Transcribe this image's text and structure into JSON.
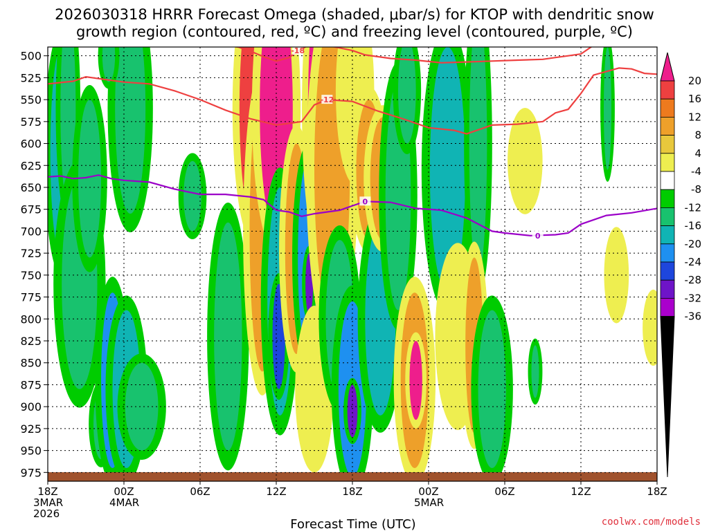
{
  "chart_data": {
    "type": "heatmap",
    "title_line1": "2026030318 HRRR Forecast Omega (shaded, μbar/s) for KTOP with dendritic snow",
    "title_line2": "growth region (contoured, red, ºC) and freezing level (contoured, purple, ºC)",
    "xlabel": "Forecast Time (UTC)",
    "credit": "coolwx.com/models",
    "x_range_hours": [
      0,
      48
    ],
    "y_range_mb": [
      490,
      985
    ],
    "y_ticks": [
      "500",
      "525",
      "550",
      "575",
      "600",
      "625",
      "650",
      "675",
      "700",
      "725",
      "750",
      "775",
      "800",
      "825",
      "850",
      "875",
      "900",
      "925",
      "950",
      "975"
    ],
    "x_ticks": [
      {
        "hour": 0,
        "lines": [
          "18Z",
          "3MAR",
          "2026"
        ]
      },
      {
        "hour": 6,
        "lines": [
          "00Z",
          "4MAR"
        ]
      },
      {
        "hour": 12,
        "lines": [
          "06Z"
        ]
      },
      {
        "hour": 18,
        "lines": [
          "12Z"
        ]
      },
      {
        "hour": 24,
        "lines": [
          "18Z"
        ]
      },
      {
        "hour": 30,
        "lines": [
          "00Z",
          "5MAR"
        ]
      },
      {
        "hour": 36,
        "lines": [
          "06Z"
        ]
      },
      {
        "hour": 42,
        "lines": [
          "12Z"
        ]
      },
      {
        "hour": 48,
        "lines": [
          "18Z"
        ]
      }
    ],
    "colorbar": {
      "labels": [
        "20",
        "16",
        "12",
        "8",
        "4",
        "-4",
        "-8",
        "-12",
        "-16",
        "-20",
        "-24",
        "-28",
        "-32",
        "-36"
      ],
      "colors": [
        "#ee1e8c",
        "#ee4040",
        "#ee7a1e",
        "#eea02a",
        "#e8c83c",
        "#eeee50",
        "#ffffff",
        "#00cc00",
        "#18c26e",
        "#10b4b4",
        "#1e90f0",
        "#1e46dc",
        "#6e14c8",
        "#aa00cc",
        "#a0a0a0",
        "#000000"
      ]
    },
    "series": [
      {
        "name": "-12C isotherm (dendritic growth region)",
        "color": "#ee4040",
        "label": "-12",
        "points": [
          [
            0,
            532
          ],
          [
            2,
            529
          ],
          [
            3,
            524
          ],
          [
            4,
            526
          ],
          [
            6,
            530
          ],
          [
            8,
            532
          ],
          [
            10,
            540
          ],
          [
            12,
            550
          ],
          [
            14,
            562
          ],
          [
            16,
            572
          ],
          [
            18,
            579
          ],
          [
            20,
            575
          ],
          [
            21,
            556
          ],
          [
            22,
            550
          ],
          [
            24,
            552
          ],
          [
            26,
            563
          ],
          [
            28,
            572
          ],
          [
            30,
            582
          ],
          [
            32,
            585
          ],
          [
            33,
            589
          ],
          [
            35,
            579
          ],
          [
            37,
            578
          ],
          [
            39,
            575
          ],
          [
            40,
            565
          ],
          [
            41,
            561
          ],
          [
            42,
            543
          ],
          [
            43,
            522
          ],
          [
            45,
            514
          ],
          [
            46,
            515
          ],
          [
            47,
            520
          ],
          [
            48,
            521
          ]
        ]
      },
      {
        "name": "-18C isotherm",
        "color": "#ee4040",
        "label": "-18",
        "points": [
          [
            14,
            488
          ],
          [
            15,
            490
          ],
          [
            16,
            495
          ],
          [
            17,
            501
          ],
          [
            18,
            506
          ],
          [
            19,
            502
          ],
          [
            20,
            492
          ],
          [
            21,
            485
          ],
          [
            22,
            488
          ],
          [
            23,
            491
          ],
          [
            24,
            494
          ],
          [
            25,
            499
          ],
          [
            27,
            503
          ],
          [
            29,
            505
          ],
          [
            31,
            508
          ],
          [
            33,
            507
          ],
          [
            35,
            506
          ],
          [
            37,
            505
          ],
          [
            39,
            504
          ],
          [
            40,
            502
          ],
          [
            41,
            500
          ],
          [
            42,
            498
          ],
          [
            43,
            488
          ]
        ]
      },
      {
        "name": "0C freezing level",
        "color": "#9b00c8",
        "label": "0",
        "points": [
          [
            0,
            638
          ],
          [
            1,
            637
          ],
          [
            2,
            640
          ],
          [
            3,
            639
          ],
          [
            4,
            636
          ],
          [
            5,
            640
          ],
          [
            6,
            642
          ],
          [
            8,
            644
          ],
          [
            10,
            652
          ],
          [
            12,
            658
          ],
          [
            14,
            658
          ],
          [
            16,
            661
          ],
          [
            17,
            664
          ],
          [
            18,
            676
          ],
          [
            19,
            678
          ],
          [
            20,
            683
          ],
          [
            21,
            680
          ],
          [
            23,
            676
          ],
          [
            25,
            666
          ],
          [
            27,
            667
          ],
          [
            29,
            674
          ],
          [
            31,
            676
          ],
          [
            33,
            685
          ],
          [
            35,
            700
          ],
          [
            36,
            702
          ],
          [
            38,
            705
          ],
          [
            40,
            704
          ],
          [
            41,
            702
          ],
          [
            42,
            692
          ],
          [
            44,
            682
          ],
          [
            46,
            679
          ],
          [
            48,
            674
          ]
        ]
      }
    ],
    "omega_cells": [
      {
        "h": 1.1,
        "p": 610,
        "dh": 0.9,
        "dp": 120,
        "v": -12
      },
      {
        "h": 1.6,
        "p": 560,
        "dh": 0.6,
        "dp": 110,
        "v": -8
      },
      {
        "h": 2.5,
        "p": 760,
        "dh": 1.4,
        "dp": 120,
        "v": -8
      },
      {
        "h": 3.3,
        "p": 640,
        "dh": 0.9,
        "dp": 90,
        "v": -8
      },
      {
        "h": 4.2,
        "p": 920,
        "dh": 0.6,
        "dp": 40,
        "v": -8
      },
      {
        "h": 5.1,
        "p": 870,
        "dh": 0.9,
        "dp": 100,
        "v": -16
      },
      {
        "h": 6.2,
        "p": 880,
        "dh": 1.1,
        "dp": 90,
        "v": -12
      },
      {
        "h": 6.5,
        "p": 560,
        "dh": 1.2,
        "dp": 120,
        "v": -8
      },
      {
        "h": 7.4,
        "p": 900,
        "dh": 1.3,
        "dp": 50,
        "v": -8
      },
      {
        "h": 4.8,
        "p": 500,
        "dh": 0.5,
        "dp": 30,
        "v": -8
      },
      {
        "h": 11.4,
        "p": 660,
        "dh": 0.7,
        "dp": 40,
        "v": -8
      },
      {
        "h": 14.2,
        "p": 820,
        "dh": 1.1,
        "dp": 130,
        "v": -8
      },
      {
        "h": 15.8,
        "p": 580,
        "dh": 0.7,
        "dp": 60,
        "v": 8
      },
      {
        "h": 16.2,
        "p": 560,
        "dh": 1.1,
        "dp": 130,
        "v": 16
      },
      {
        "h": 16.9,
        "p": 700,
        "dh": 1.0,
        "dp": 160,
        "v": 8
      },
      {
        "h": 18.0,
        "p": 560,
        "dh": 1.3,
        "dp": 140,
        "v": 20
      },
      {
        "h": 18.3,
        "p": 780,
        "dh": 1.0,
        "dp": 130,
        "v": -12
      },
      {
        "h": 18.2,
        "p": 820,
        "dh": 0.5,
        "dp": 60,
        "v": -20
      },
      {
        "h": 19.6,
        "p": 720,
        "dh": 0.9,
        "dp": 120,
        "v": 8
      },
      {
        "h": 20.5,
        "p": 730,
        "dh": 0.8,
        "dp": 110,
        "v": -16
      },
      {
        "h": 20.6,
        "p": 760,
        "dh": 0.3,
        "dp": 35,
        "v": -24
      },
      {
        "h": 21.4,
        "p": 560,
        "dh": 0.9,
        "dp": 140,
        "v": 20
      },
      {
        "h": 21.0,
        "p": 880,
        "dh": 1.0,
        "dp": 80,
        "v": 4
      },
      {
        "h": 22.4,
        "p": 630,
        "dh": 1.4,
        "dp": 170,
        "v": 8
      },
      {
        "h": 23.0,
        "p": 800,
        "dh": 1.1,
        "dp": 90,
        "v": -8
      },
      {
        "h": 24.0,
        "p": 880,
        "dh": 1.1,
        "dp": 100,
        "v": -16
      },
      {
        "h": 24.0,
        "p": 905,
        "dh": 0.4,
        "dp": 30,
        "v": -24
      },
      {
        "h": 24.2,
        "p": 540,
        "dh": 1.0,
        "dp": 90,
        "v": 4
      },
      {
        "h": 25.3,
        "p": 630,
        "dh": 1.0,
        "dp": 80,
        "v": 8
      },
      {
        "h": 26.2,
        "p": 800,
        "dh": 1.2,
        "dp": 110,
        "v": -12
      },
      {
        "h": 26.4,
        "p": 640,
        "dh": 1.0,
        "dp": 70,
        "v": 8
      },
      {
        "h": 27.6,
        "p": 660,
        "dh": 1.0,
        "dp": 130,
        "v": -8
      },
      {
        "h": 28.3,
        "p": 540,
        "dh": 0.7,
        "dp": 60,
        "v": -8
      },
      {
        "h": 28.9,
        "p": 870,
        "dh": 1.1,
        "dp": 100,
        "v": 8
      },
      {
        "h": 29.0,
        "p": 870,
        "dh": 0.5,
        "dp": 45,
        "v": 20
      },
      {
        "h": 31.5,
        "p": 630,
        "dh": 1.4,
        "dp": 140,
        "v": -12
      },
      {
        "h": 32.3,
        "p": 820,
        "dh": 1.2,
        "dp": 90,
        "v": 4
      },
      {
        "h": 33.9,
        "p": 600,
        "dh": 0.7,
        "dp": 150,
        "v": -8
      },
      {
        "h": 33.6,
        "p": 830,
        "dh": 0.7,
        "dp": 100,
        "v": 8
      },
      {
        "h": 35.0,
        "p": 880,
        "dh": 1.1,
        "dp": 90,
        "v": -8
      },
      {
        "h": 37.6,
        "p": 620,
        "dh": 0.9,
        "dp": 50,
        "v": 4
      },
      {
        "h": 38.4,
        "p": 860,
        "dh": 0.3,
        "dp": 30,
        "v": -8
      },
      {
        "h": 44.1,
        "p": 560,
        "dh": 0.3,
        "dp": 70,
        "v": -8
      },
      {
        "h": 44.8,
        "p": 750,
        "dh": 0.6,
        "dp": 45,
        "v": 4
      },
      {
        "h": 47.7,
        "p": 810,
        "dh": 0.5,
        "dp": 35,
        "v": 4
      }
    ]
  }
}
